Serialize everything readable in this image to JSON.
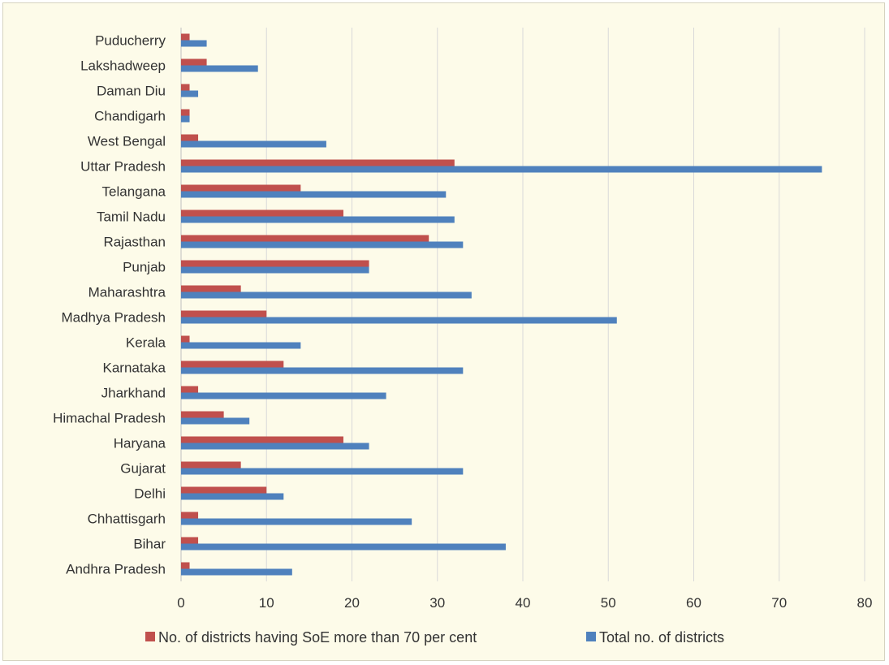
{
  "chart_data": {
    "type": "bar",
    "orientation": "horizontal",
    "categories": [
      "Andhra Pradesh",
      "Bihar",
      "Chhattisgarh",
      "Delhi",
      "Gujarat",
      "Haryana",
      "Himachal Pradesh",
      "Jharkhand",
      "Karnataka",
      "Kerala",
      "Madhya Pradesh",
      "Maharashtra",
      "Punjab",
      "Rajasthan",
      "Tamil Nadu",
      "Telangana",
      "Uttar Pradesh",
      "West Bengal",
      "Chandigarh",
      "Daman Diu",
      "Lakshadweep",
      "Puducherry"
    ],
    "series": [
      {
        "name": "No. of districts having SoE more than 70 per cent",
        "color": "#c0504d",
        "values": [
          1,
          2,
          2,
          10,
          7,
          19,
          5,
          2,
          12,
          1,
          10,
          7,
          22,
          29,
          19,
          14,
          32,
          2,
          1,
          1,
          3,
          1
        ]
      },
      {
        "name": "Total no. of  districts",
        "color": "#4f81bd",
        "values": [
          13,
          38,
          27,
          12,
          33,
          22,
          8,
          24,
          33,
          14,
          51,
          34,
          22,
          33,
          32,
          31,
          75,
          17,
          1,
          2,
          9,
          3
        ]
      }
    ],
    "xlim": [
      0,
      80
    ],
    "x_ticks": [
      "0",
      "10",
      "20",
      "30",
      "40",
      "50",
      "60",
      "70",
      "80"
    ],
    "grid": true,
    "legend_position": "bottom",
    "title": "",
    "xlabel": "",
    "ylabel": ""
  }
}
